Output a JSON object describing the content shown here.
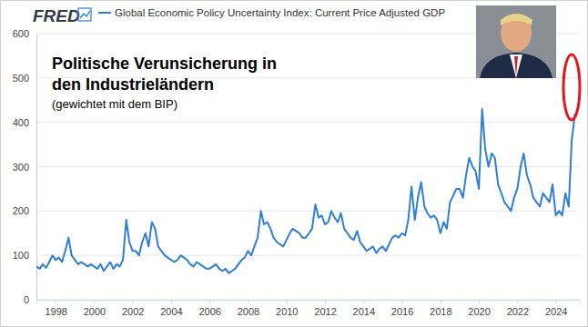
{
  "chart_data": {
    "type": "line",
    "source": "FRED",
    "title": "Politische Verunsicherung in den Industrieländern",
    "subtitle": "(gewichtet mit dem BIP)",
    "legend": "top-left",
    "grid": true,
    "x": [
      1997,
      1997.17,
      1997.33,
      1997.5,
      1997.67,
      1997.83,
      1998,
      1998.17,
      1998.33,
      1998.5,
      1998.67,
      1998.83,
      1999,
      1999.17,
      1999.33,
      1999.5,
      1999.67,
      1999.83,
      2000,
      2000.17,
      2000.33,
      2000.5,
      2000.67,
      2000.83,
      2001,
      2001.17,
      2001.33,
      2001.5,
      2001.67,
      2001.83,
      2002,
      2002.17,
      2002.33,
      2002.5,
      2002.67,
      2002.83,
      2003,
      2003.17,
      2003.33,
      2003.5,
      2003.67,
      2003.83,
      2004,
      2004.17,
      2004.33,
      2004.5,
      2004.67,
      2004.83,
      2005,
      2005.17,
      2005.33,
      2005.5,
      2005.67,
      2005.83,
      2006,
      2006.17,
      2006.33,
      2006.5,
      2006.67,
      2006.83,
      2007,
      2007.17,
      2007.33,
      2007.5,
      2007.67,
      2007.83,
      2008,
      2008.17,
      2008.33,
      2008.5,
      2008.67,
      2008.83,
      2009,
      2009.17,
      2009.33,
      2009.5,
      2009.67,
      2009.83,
      2010,
      2010.17,
      2010.33,
      2010.5,
      2010.67,
      2010.83,
      2011,
      2011.17,
      2011.33,
      2011.5,
      2011.67,
      2011.83,
      2012,
      2012.17,
      2012.33,
      2012.5,
      2012.67,
      2012.83,
      2013,
      2013.17,
      2013.33,
      2013.5,
      2013.67,
      2013.83,
      2014,
      2014.17,
      2014.33,
      2014.5,
      2014.67,
      2014.83,
      2015,
      2015.17,
      2015.33,
      2015.5,
      2015.67,
      2015.83,
      2016,
      2016.17,
      2016.33,
      2016.5,
      2016.67,
      2016.83,
      2017,
      2017.17,
      2017.33,
      2017.5,
      2017.67,
      2017.83,
      2018,
      2018.17,
      2018.33,
      2018.5,
      2018.67,
      2018.83,
      2019,
      2019.17,
      2019.33,
      2019.5,
      2019.67,
      2019.83,
      2020,
      2020.17,
      2020.33,
      2020.5,
      2020.67,
      2020.83,
      2021,
      2021.17,
      2021.33,
      2021.5,
      2021.67,
      2021.83,
      2022,
      2022.17,
      2022.33,
      2022.5,
      2022.67,
      2022.83,
      2023,
      2023.17,
      2023.33,
      2023.5,
      2023.67,
      2023.83,
      2024,
      2024.17,
      2024.33,
      2024.5,
      2024.67,
      2024.83,
      2025
    ],
    "series": [
      {
        "name": "Global Economic Policy Uncertainty Index: Current Price Adjusted GDP",
        "color": "#2f7ed8",
        "line_style": "solid",
        "values": [
          75,
          70,
          80,
          72,
          85,
          100,
          90,
          95,
          85,
          110,
          140,
          100,
          90,
          80,
          85,
          80,
          75,
          80,
          75,
          70,
          80,
          65,
          75,
          85,
          70,
          80,
          75,
          90,
          180,
          130,
          110,
          110,
          100,
          130,
          150,
          120,
          175,
          160,
          120,
          110,
          100,
          95,
          90,
          85,
          90,
          100,
          95,
          90,
          80,
          75,
          85,
          80,
          75,
          70,
          70,
          75,
          80,
          70,
          65,
          70,
          60,
          65,
          70,
          80,
          90,
          95,
          110,
          100,
          120,
          140,
          200,
          170,
          175,
          160,
          140,
          130,
          125,
          120,
          135,
          150,
          160,
          155,
          150,
          140,
          140,
          150,
          160,
          215,
          185,
          190,
          170,
          175,
          200,
          185,
          175,
          195,
          160,
          150,
          140,
          135,
          155,
          130,
          120,
          110,
          115,
          120,
          105,
          115,
          120,
          110,
          125,
          140,
          145,
          140,
          150,
          145,
          180,
          255,
          180,
          230,
          265,
          210,
          195,
          185,
          190,
          180,
          150,
          175,
          160,
          220,
          235,
          250,
          250,
          230,
          280,
          320,
          300,
          290,
          250,
          430,
          340,
          300,
          330,
          320,
          260,
          240,
          220,
          210,
          200,
          230,
          250,
          300,
          330,
          280,
          260,
          230,
          220,
          210,
          240,
          230,
          220,
          260,
          190,
          200,
          190,
          240,
          210,
          360,
          420
        ]
      }
    ],
    "xlim": [
      1997,
      2025.2
    ],
    "xticks": [
      1998,
      2000,
      2002,
      2004,
      2006,
      2008,
      2010,
      2012,
      2014,
      2016,
      2018,
      2020,
      2022,
      2024
    ],
    "ylim": [
      0,
      600
    ],
    "yticks": [
      0,
      100,
      200,
      300,
      400,
      500,
      600
    ]
  }
}
